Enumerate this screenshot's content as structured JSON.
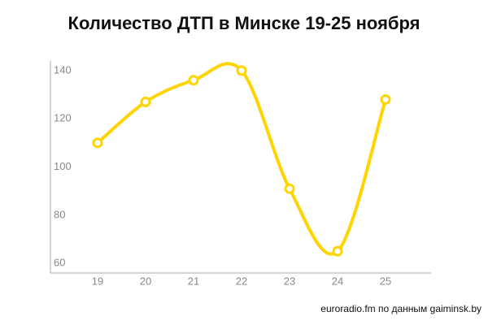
{
  "chart_data": {
    "type": "line",
    "title": "Количество ДТП в Минске 19-25 ноября",
    "categories": [
      "19",
      "20",
      "21",
      "22",
      "23",
      "24",
      "25"
    ],
    "values": [
      110,
      127,
      136,
      140,
      91,
      65,
      128
    ],
    "color": "#ffd400",
    "smooth": true,
    "ylim": [
      56,
      144
    ],
    "yticks": [
      60,
      80,
      100,
      120,
      140
    ],
    "grid": false,
    "source": "euroradio.fm по данным gaiminsk.by"
  }
}
